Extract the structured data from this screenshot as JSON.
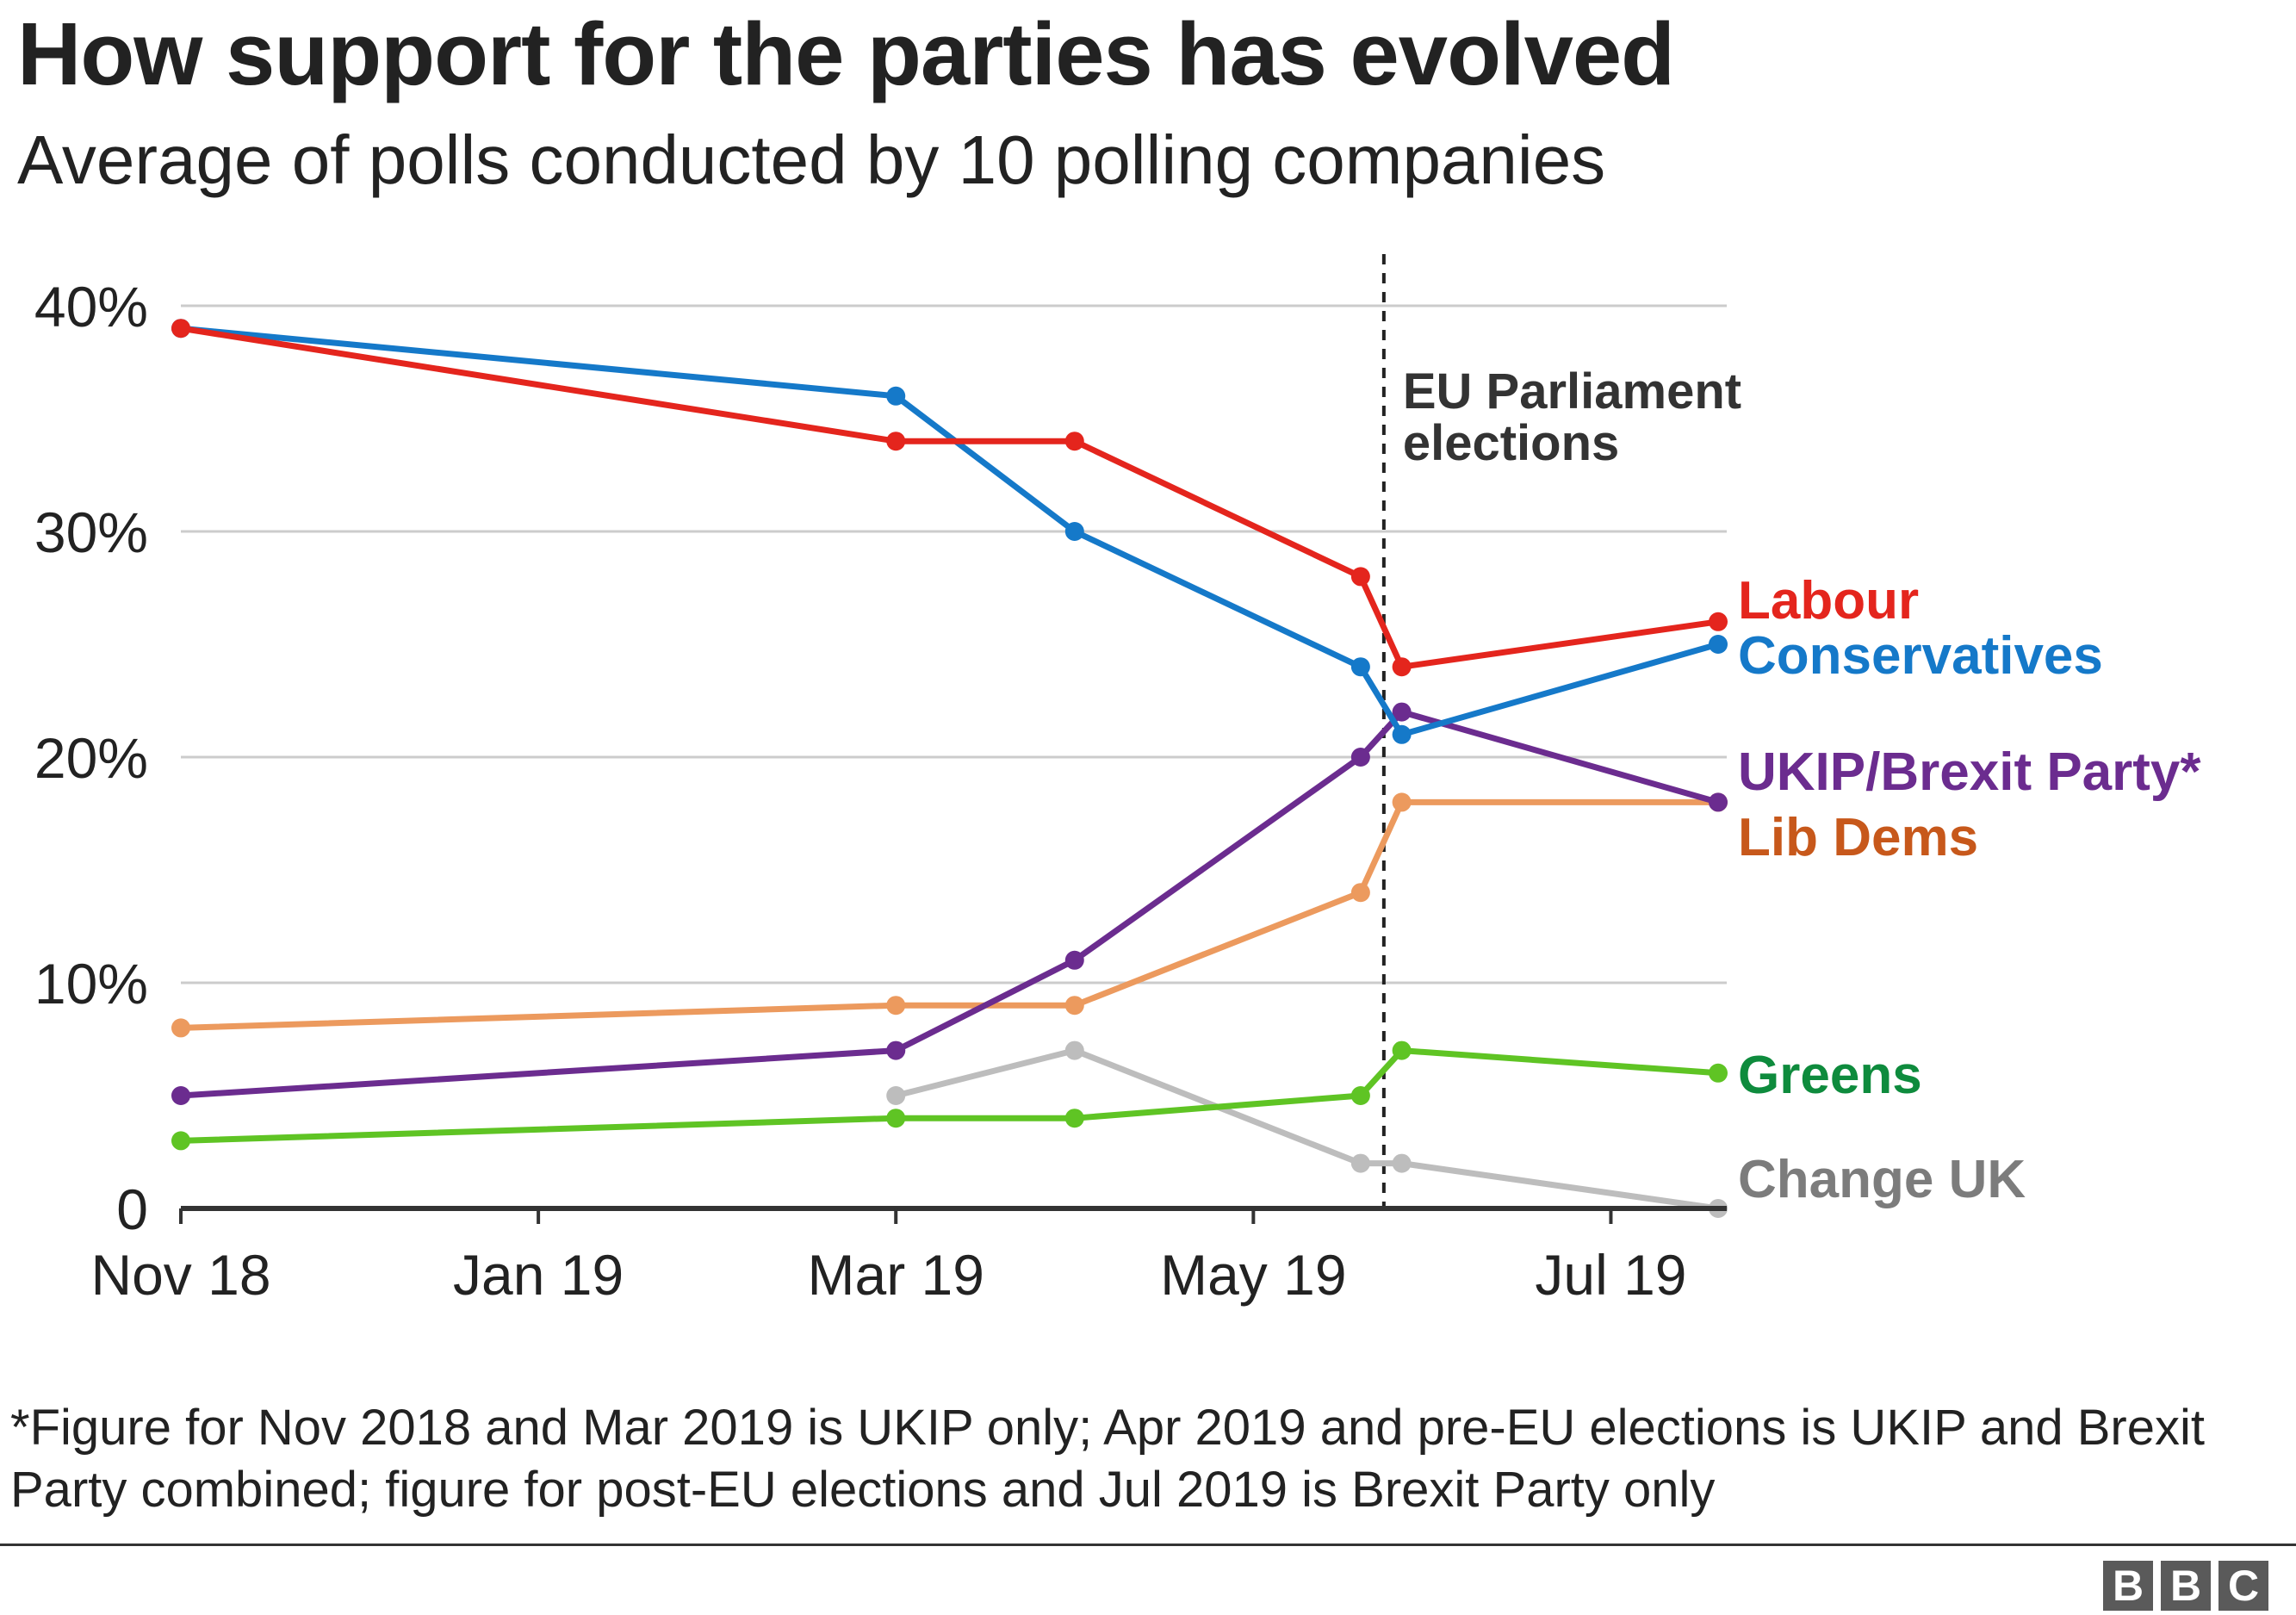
{
  "title": "How support for the parties has evolved",
  "subtitle": "Average of polls conducted by 10 polling companies",
  "footnote": "*Figure for Nov 2018 and Mar 2019 is UKIP only; Apr 2019 and pre-EU elections is UKIP and Brexit Party combined; figure for post-EU elections and Jul 2019 is Brexit Party only",
  "logo": [
    "B",
    "B",
    "C"
  ],
  "chart_data": {
    "type": "line",
    "title": "How support for the parties has evolved",
    "xlabel": "",
    "ylabel": "",
    "x_axis": {
      "range_months": [
        0,
        8.6
      ],
      "ticks": [
        {
          "pos": 0,
          "label": "Nov 18"
        },
        {
          "pos": 2,
          "label": "Jan 19"
        },
        {
          "pos": 4,
          "label": "Mar 19"
        },
        {
          "pos": 6,
          "label": "May 19"
        },
        {
          "pos": 8,
          "label": "Jul 19"
        }
      ]
    },
    "y_axis": {
      "range": [
        0,
        40
      ],
      "ticks": [
        {
          "value": 0,
          "label": "0"
        },
        {
          "value": 10,
          "label": "10%"
        },
        {
          "value": 20,
          "label": "20%"
        },
        {
          "value": 30,
          "label": "30%"
        },
        {
          "value": 40,
          "label": "40%"
        }
      ]
    },
    "grid": true,
    "annotation": {
      "x": 6.73,
      "lines": [
        "EU Parliament",
        "elections"
      ]
    },
    "series": [
      {
        "name": "Labour",
        "color": "#e4251d",
        "label_color": "#e4251d",
        "x": [
          0,
          4,
          5,
          6.6,
          6.83,
          8.6
        ],
        "values": [
          39,
          34,
          34,
          28,
          24,
          26
        ]
      },
      {
        "name": "Conservatives",
        "color": "#1579c9",
        "label_color": "#1579c9",
        "x": [
          0,
          4,
          5,
          6.6,
          6.83,
          8.6
        ],
        "values": [
          39,
          36,
          30,
          24,
          21,
          25
        ]
      },
      {
        "name": "UKIP/Brexit Party*",
        "color": "#6b2c8f",
        "label_color": "#6b2c8f",
        "x": [
          0,
          4,
          5,
          6.6,
          6.83,
          8.6
        ],
        "values": [
          5,
          7,
          11,
          20,
          22,
          18
        ]
      },
      {
        "name": "Lib Dems",
        "color": "#ec9a5e",
        "label_color": "#c7581b",
        "x": [
          0,
          4,
          5,
          6.6,
          6.83,
          8.6
        ],
        "values": [
          8,
          9,
          9,
          14,
          18,
          18
        ]
      },
      {
        "name": "Greens",
        "color": "#5fc424",
        "label_color": "#0e8b3d",
        "x": [
          0,
          4,
          5,
          6.6,
          6.83,
          8.6
        ],
        "values": [
          3,
          4,
          4,
          5,
          7,
          6
        ]
      },
      {
        "name": "Change UK",
        "color": "#bdbdbd",
        "label_color": "#7c7c7c",
        "x": [
          4,
          5,
          6.6,
          6.83,
          8.6
        ],
        "values": [
          5,
          7,
          2,
          2,
          0
        ]
      }
    ]
  }
}
